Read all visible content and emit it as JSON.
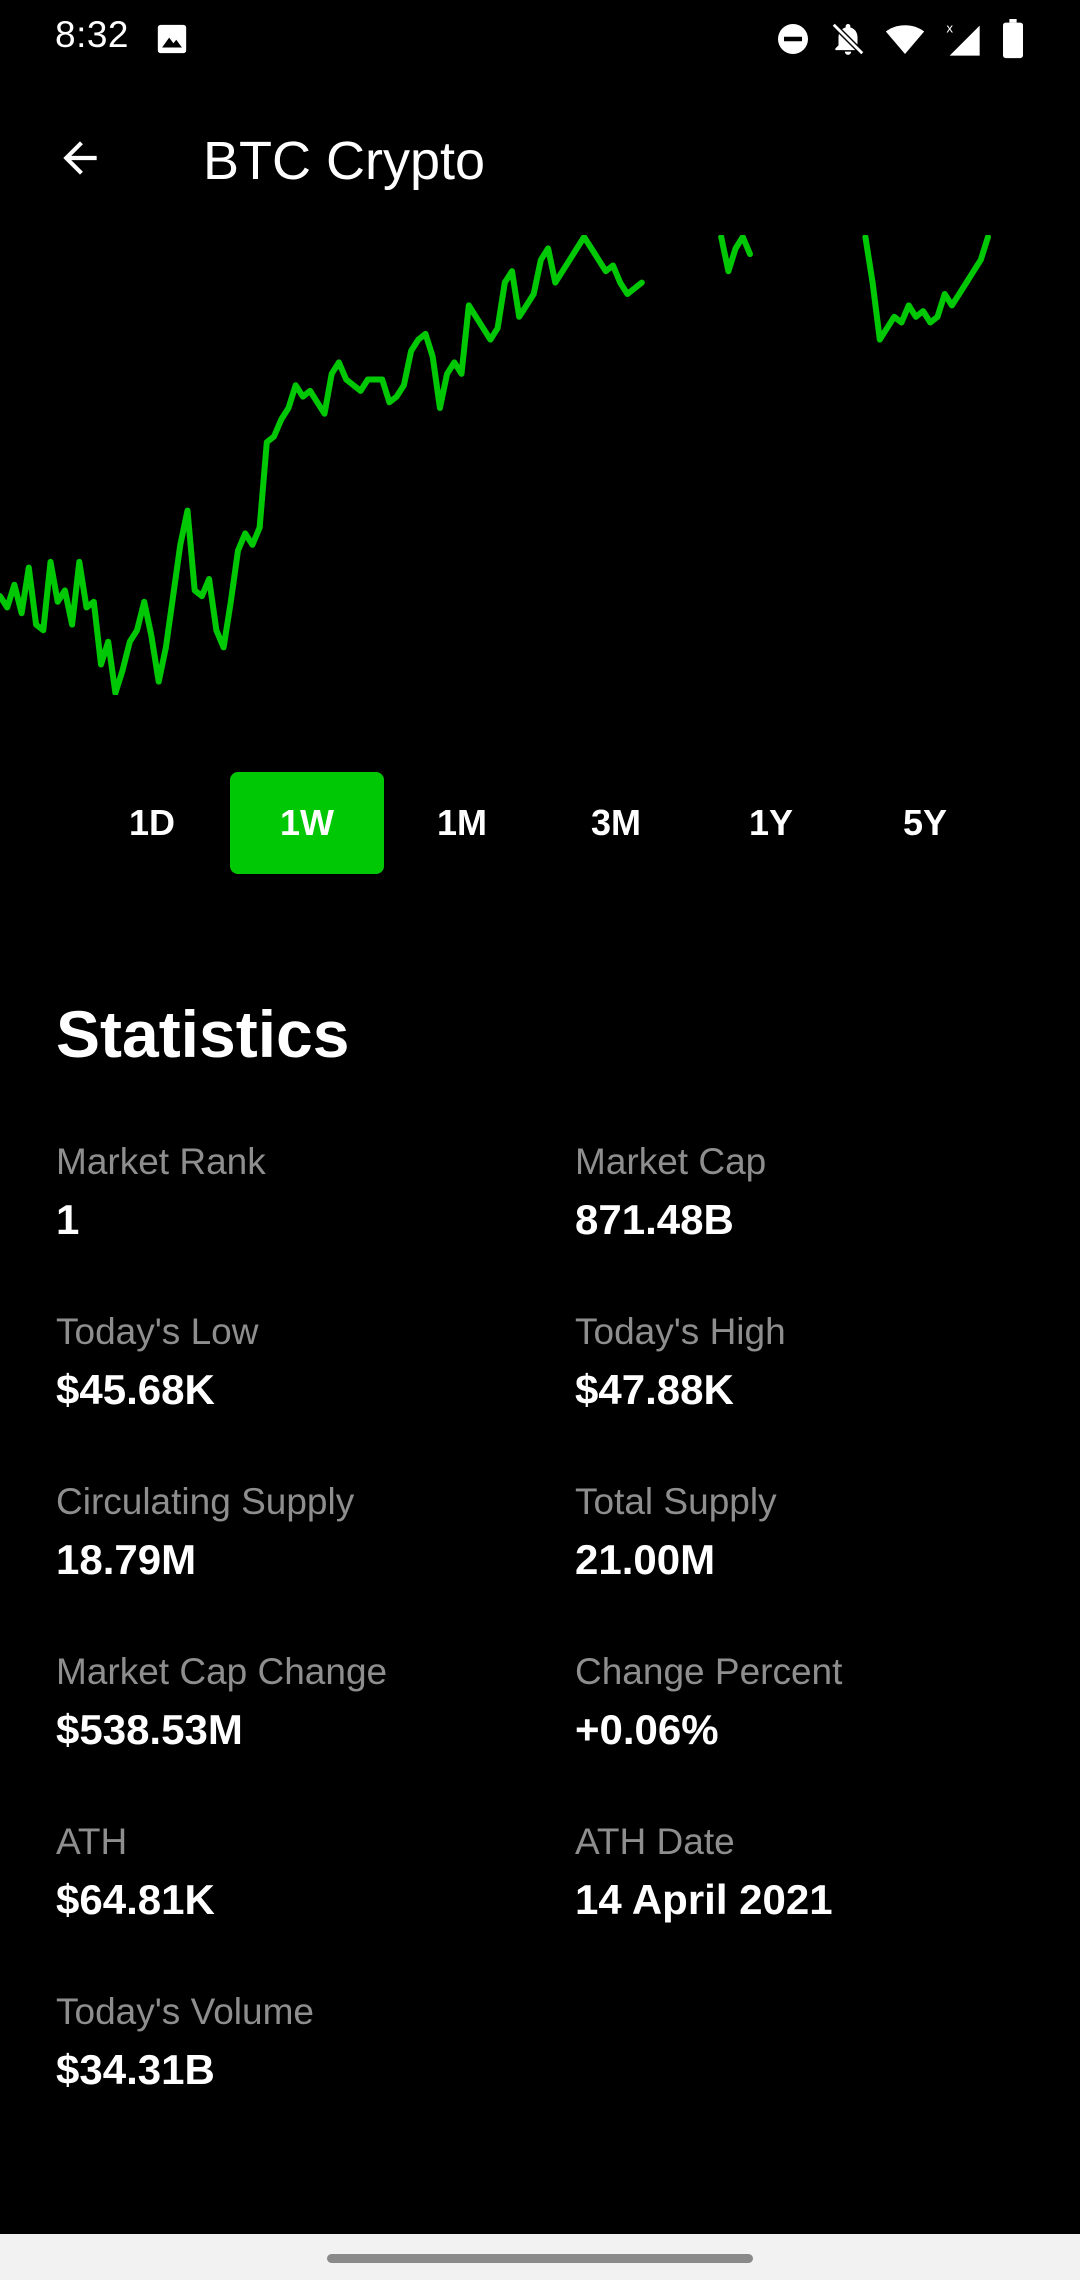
{
  "status_bar": {
    "time": "8:32",
    "icons": [
      "image-icon",
      "dnd-icon",
      "notifications-off-icon",
      "wifi-icon",
      "signal-icon",
      "battery-icon"
    ]
  },
  "app_bar": {
    "back_icon": "arrow-back-icon",
    "title": "BTC Crypto"
  },
  "chart_data": {
    "type": "line",
    "series": [
      {
        "color": "#00c805",
        "values": [
          37,
          35,
          39,
          34,
          42,
          32,
          31,
          43,
          36,
          38,
          32,
          43,
          35,
          36,
          25,
          29,
          20,
          24,
          29,
          31,
          36,
          30,
          22,
          28,
          37,
          46,
          52,
          38,
          37,
          40,
          31,
          28,
          36,
          45,
          48,
          46,
          49,
          64,
          65,
          68,
          70,
          74,
          72,
          73,
          71,
          69,
          76,
          78,
          75,
          74,
          73,
          75,
          75,
          75,
          71,
          72,
          74,
          80,
          82,
          83,
          79,
          70,
          76,
          78,
          76,
          88,
          86,
          84,
          82,
          84,
          92,
          94,
          86,
          88,
          90,
          96,
          98,
          92,
          94,
          96,
          98,
          100,
          98,
          96,
          94,
          95,
          92,
          90,
          91,
          92,
          null,
          null,
          null,
          null,
          null,
          null,
          null,
          null,
          null,
          null,
          100,
          94,
          98,
          100,
          97,
          null,
          null,
          null,
          null,
          null,
          null,
          null,
          null,
          null,
          null,
          null,
          null,
          null,
          null,
          null,
          100,
          92,
          82,
          84,
          86,
          85,
          88,
          86,
          87,
          85,
          86,
          90,
          88,
          90,
          92,
          94,
          96,
          100
        ]
      }
    ],
    "ranges": [
      "1D",
      "1W",
      "1M",
      "3M",
      "1Y",
      "5Y"
    ],
    "selected_range": "1W",
    "grid": false
  },
  "range_tabs": [
    {
      "label": "1D",
      "active": false
    },
    {
      "label": "1W",
      "active": true
    },
    {
      "label": "1M",
      "active": false
    },
    {
      "label": "3M",
      "active": false
    },
    {
      "label": "1Y",
      "active": false
    },
    {
      "label": "5Y",
      "active": false
    }
  ],
  "statistics": {
    "heading": "Statistics",
    "items": [
      {
        "label": "Market Rank",
        "value": "1"
      },
      {
        "label": "Market Cap",
        "value": "871.48B"
      },
      {
        "label": "Today's Low",
        "value": "$45.68K"
      },
      {
        "label": "Today's High",
        "value": "$47.88K"
      },
      {
        "label": "Circulating Supply",
        "value": "18.79M"
      },
      {
        "label": "Total Supply",
        "value": "21.00M"
      },
      {
        "label": "Market Cap Change",
        "value": "$538.53M"
      },
      {
        "label": "Change Percent",
        "value": "+0.06%"
      },
      {
        "label": "ATH",
        "value": "$64.81K"
      },
      {
        "label": "ATH Date",
        "value": "14 April 2021"
      },
      {
        "label": "Today's Volume",
        "value": "$34.31B"
      }
    ]
  },
  "colors": {
    "background": "#000000",
    "accent": "#00c805",
    "label": "#8e8e8e",
    "nav_bar": "#f2f2f2"
  }
}
